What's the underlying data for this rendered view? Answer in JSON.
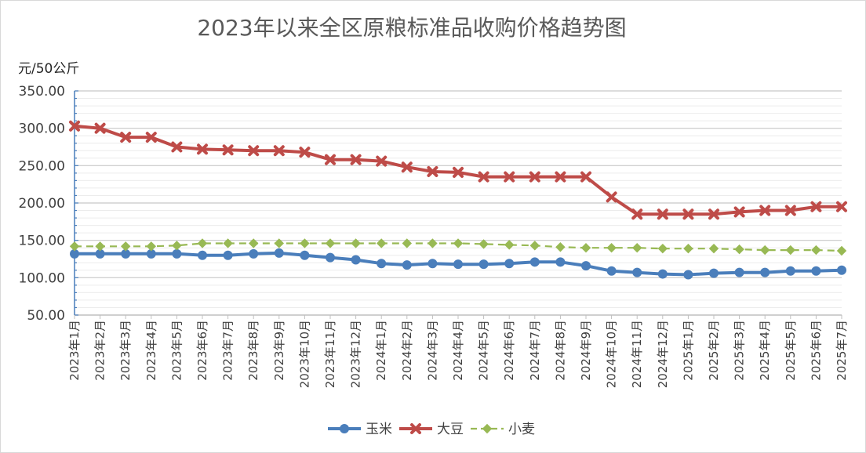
{
  "chart_data": {
    "type": "line",
    "title": "2023年以来全区原粮标准品收购价格趋势图",
    "ylabel": "元/50公斤",
    "xlabel": "",
    "ylim": [
      50,
      350
    ],
    "y_ticks": [
      "350.00",
      "300.00",
      "250.00",
      "200.00",
      "150.00",
      "100.00",
      "50.00"
    ],
    "grid": true,
    "legend_position": "bottom",
    "categories": [
      "2023年1月",
      "2023年2月",
      "2023年3月",
      "2023年4月",
      "2023年5月",
      "2023年6月",
      "2023年7月",
      "2023年8月",
      "2023年9月",
      "2023年10月",
      "2023年11月",
      "2023年12月",
      "2024年1月",
      "2024年2月",
      "2024年3月",
      "2024年4月",
      "2024年5月",
      "2024年6月",
      "2024年7月",
      "2024年8月",
      "2024年9月",
      "2024年10月",
      "2024年11月",
      "2024年12月",
      "2025年1月",
      "2025年2月",
      "2025年3月",
      "2025年4月",
      "2025年5月",
      "2025年6月",
      "2025年7月"
    ],
    "series": [
      {
        "name": "玉米",
        "color": "#4a7ebb",
        "marker": "circle",
        "style": "solid",
        "values": [
          132,
          132,
          132,
          132,
          132,
          130,
          130,
          132,
          133,
          130,
          127,
          124,
          119,
          117,
          119,
          118,
          118,
          119,
          121,
          121,
          116,
          109,
          107,
          105,
          104,
          106,
          107,
          107,
          109,
          109,
          110
        ]
      },
      {
        "name": "大豆",
        "color": "#be4b48",
        "marker": "x",
        "style": "solid",
        "values": [
          303,
          300,
          288,
          288,
          275,
          272,
          271,
          270,
          270,
          268,
          258,
          258,
          256,
          248,
          242,
          241,
          235,
          235,
          235,
          235,
          235,
          208,
          185,
          185,
          185,
          185,
          188,
          190,
          190,
          195,
          195
        ]
      },
      {
        "name": "小麦",
        "color": "#98b954",
        "marker": "diamond",
        "style": "dashed",
        "values": [
          142,
          142,
          142,
          142,
          143,
          146,
          146,
          146,
          146,
          146,
          146,
          146,
          146,
          146,
          146,
          146,
          145,
          144,
          143,
          141,
          140,
          140,
          140,
          139,
          139,
          139,
          138,
          137,
          137,
          137,
          136
        ]
      }
    ]
  }
}
